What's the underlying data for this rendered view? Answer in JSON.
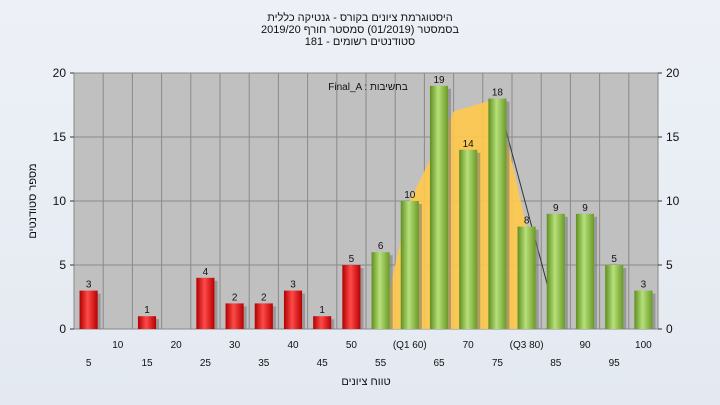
{
  "chart_data": {
    "type": "bar",
    "title_lines": [
      "היסטוגרמת ציונים בקורס - גנטיקה כללית",
      "בסמסטר  (01/2019)  סמסטר חורף 2019/20",
      "סטודנטים רשומים - 181"
    ],
    "xlabel": "טווח ציונים",
    "ylabel": "מספר סטודנטים",
    "annotation": "Final_A : בחשיבות",
    "ylim": [
      0,
      20
    ],
    "yticks": [
      0,
      5,
      10,
      15,
      20
    ],
    "grid": true,
    "categories": [
      "5",
      "10",
      "15",
      "20",
      "25",
      "30",
      "35",
      "40",
      "45",
      "50",
      "55",
      "(Q1 60)",
      "65",
      "70",
      "75",
      "(Q3 80)",
      "85",
      "90",
      "95",
      "100"
    ],
    "values": [
      3,
      0,
      1,
      0,
      4,
      2,
      2,
      3,
      1,
      5,
      6,
      10,
      19,
      14,
      18,
      8,
      9,
      9,
      5,
      3
    ],
    "value_labels": [
      "3",
      "",
      "1",
      "",
      "4",
      "2",
      "2",
      "3",
      "1",
      "5",
      "6",
      "10",
      "19",
      "14",
      "18",
      "8",
      "9",
      "9",
      "5",
      "3"
    ],
    "bar_colors": [
      "red",
      "red",
      "red",
      "red",
      "red",
      "red",
      "red",
      "red",
      "red",
      "red",
      "green",
      "green",
      "green",
      "green",
      "green",
      "green",
      "green",
      "green",
      "green",
      "green"
    ],
    "distribution_overlay": {
      "type": "area",
      "color": "#ffc94a"
    },
    "colors": {
      "fail": "#e01010",
      "pass": "#8dc63f",
      "overlay": "#ffc94a",
      "plot_bg": "#c0c0c0"
    }
  }
}
